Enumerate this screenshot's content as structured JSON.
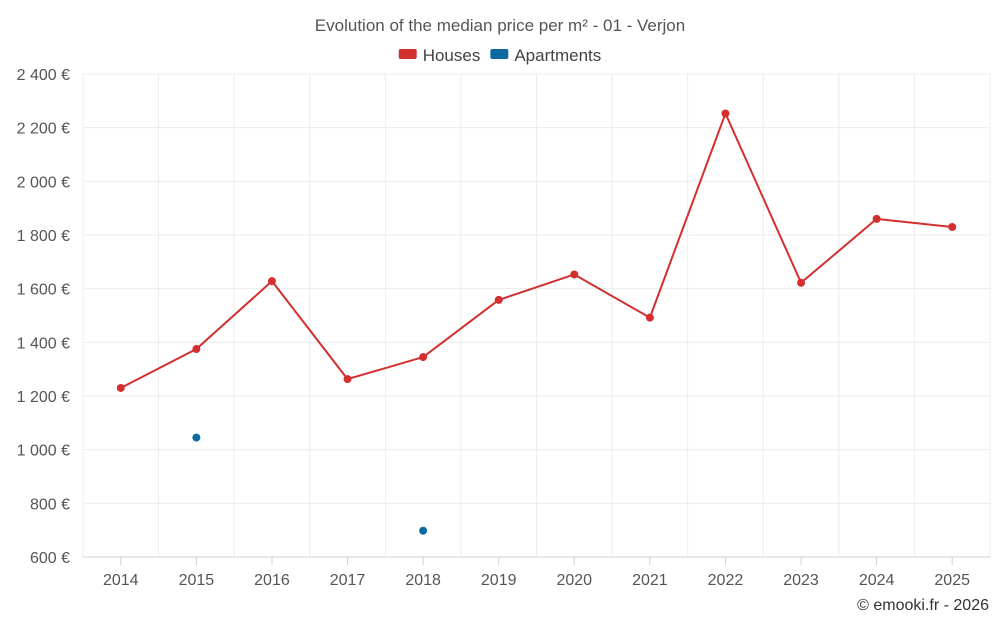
{
  "chart_data": {
    "type": "line",
    "title": "Evolution of the median price per m² - 01 - Verjon",
    "categories": [
      "2014",
      "2015",
      "2016",
      "2017",
      "2018",
      "2019",
      "2020",
      "2021",
      "2022",
      "2023",
      "2024",
      "2025"
    ],
    "series": [
      {
        "name": "Houses",
        "color": "#d32f2f",
        "mode": "line",
        "values": [
          1230,
          1375,
          1628,
          1263,
          1345,
          1558,
          1653,
          1492,
          2253,
          1622,
          1860,
          1830
        ]
      },
      {
        "name": "Apartments",
        "color": "#0a6aa1",
        "mode": "points",
        "values": [
          null,
          1045,
          null,
          null,
          698,
          null,
          null,
          null,
          null,
          null,
          null,
          null
        ]
      }
    ],
    "ylim": [
      600,
      2400
    ],
    "yticks": [
      600,
      800,
      1000,
      1200,
      1400,
      1600,
      1800,
      2000,
      2200,
      2400
    ],
    "ytick_labels": [
      "600 €",
      "800 €",
      "1 000 €",
      "1 200 €",
      "1 400 €",
      "1 600 €",
      "1 800 €",
      "2 000 €",
      "2 200 €",
      "2 400 €"
    ],
    "xlabel": "",
    "ylabel": "",
    "grid": true,
    "legend_position": "top-center"
  },
  "credit": "© emooki.fr - 2026"
}
